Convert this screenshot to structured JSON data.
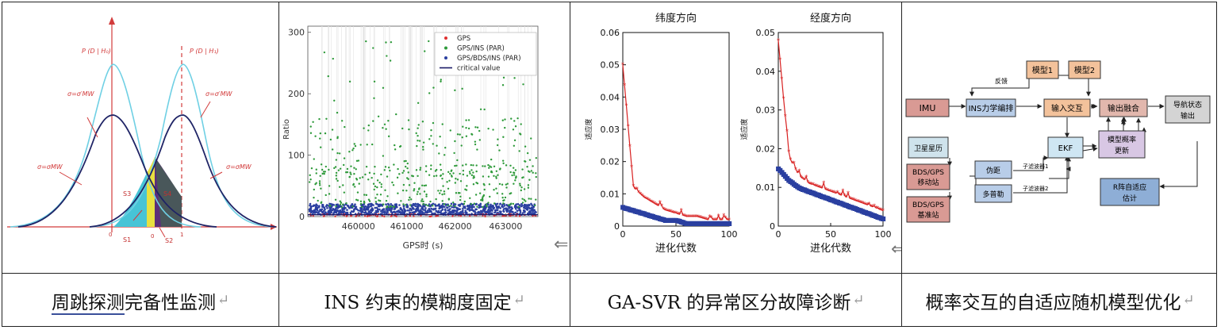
{
  "captions": [
    {
      "underlined": "周跳探测",
      "rest": "完备性监测",
      "mark": "↵"
    },
    {
      "text": "INS 约束的模糊度固定",
      "mark": "↵"
    },
    {
      "text": "GA-SVR 的异常区分故障诊断",
      "mark": "↵"
    },
    {
      "text": "概率交互的自适应随机模型优化",
      "mark": "↵"
    }
  ],
  "panel1": {
    "ph0": "P (D | H₀)",
    "ph1": "P (D | H₁)",
    "sigma_labels": [
      "σ=σ′MW",
      "σ=σ′MW",
      "σ=σMW",
      "σ=σMW"
    ],
    "regions": [
      "S3",
      "S4",
      "S1",
      "S2"
    ],
    "ticks": [
      "0",
      "0",
      "1"
    ]
  },
  "panel2": {
    "chart_data": {
      "type": "scatter",
      "ylabel": "Ratio",
      "xlabel": "GPS时 (s)",
      "xticks": [
        "460000",
        "461000",
        "462000",
        "463000"
      ],
      "yticks": [
        "0",
        "100",
        "200",
        "300"
      ],
      "ylim": [
        0,
        310
      ],
      "legend": [
        "GPS",
        "GPS/INS (PAR)",
        "GPS/BDS/INS (PAR)",
        "critical value"
      ],
      "colors": {
        "GPS": "#e03030",
        "GPS/INS (PAR)": "#2e9a3a",
        "GPS/BDS/INS (PAR)": "#2a3fa0",
        "critical value": "#1a1a66"
      }
    },
    "side_arrow": "⇐"
  },
  "panel3": {
    "chart_data": [
      {
        "type": "line",
        "title": "纬度方向",
        "xlabel": "进化代数",
        "ylabel": "适应度",
        "xticks": [
          "0",
          "50",
          "100"
        ],
        "yticks": [
          "0",
          "0.01",
          "0.02",
          "0.03",
          "0.04",
          "0.05",
          "0.06"
        ],
        "ylim": [
          0,
          0.06
        ],
        "series": [
          {
            "color": "#d82020",
            "values": [
              0.05,
              0.012,
              0.009,
              0.007,
              0.005,
              0.004,
              0.003,
              0.003,
              0.002,
              0.002,
              0.002
            ]
          },
          {
            "color": "#2a3fa0",
            "values": [
              0.006,
              0.005,
              0.004,
              0.003,
              0.002,
              0.002,
              0.001,
              0.001,
              0.001,
              0.001,
              0.001
            ]
          }
        ]
      },
      {
        "type": "line",
        "title": "经度方向",
        "xlabel": "进化代数",
        "ylabel": "适应度",
        "xticks": [
          "0",
          "50",
          "100"
        ],
        "yticks": [
          "0",
          "0.01",
          "0.02",
          "0.03",
          "0.04",
          "0.05"
        ],
        "ylim": [
          0,
          0.05
        ],
        "series": [
          {
            "color": "#d82020",
            "values": [
              0.048,
              0.018,
              0.013,
              0.011,
              0.01,
              0.009,
              0.008,
              0.007,
              0.006,
              0.005,
              0.004
            ]
          },
          {
            "color": "#2a3fa0",
            "values": [
              0.015,
              0.012,
              0.01,
              0.009,
              0.008,
              0.007,
              0.006,
              0.005,
              0.004,
              0.003,
              0.002
            ]
          }
        ]
      }
    ],
    "side_arrow": "⇐"
  },
  "panel4": {
    "imu": "IMU",
    "ins": "INS力学编排",
    "feedback": "反馈",
    "model1": "模型1",
    "model2": "模型2",
    "input_interact": "输入交互",
    "output_fuse": "输出融合",
    "nav_state": [
      "导航状态",
      "输出"
    ],
    "sat_almanac": "卫星星历",
    "ekf": "EKF",
    "model_prob": [
      "模型概率",
      "更新"
    ],
    "rover": [
      "BDS/GPS",
      "移动站"
    ],
    "base": [
      "BDS/GPS",
      "基准站"
    ],
    "pseudorange": "伪距",
    "doppler": "多普勒",
    "sub1": "子滤波器1",
    "sub2": "子滤波器2",
    "r_adapt": [
      "R阵自适应",
      "估计"
    ]
  }
}
